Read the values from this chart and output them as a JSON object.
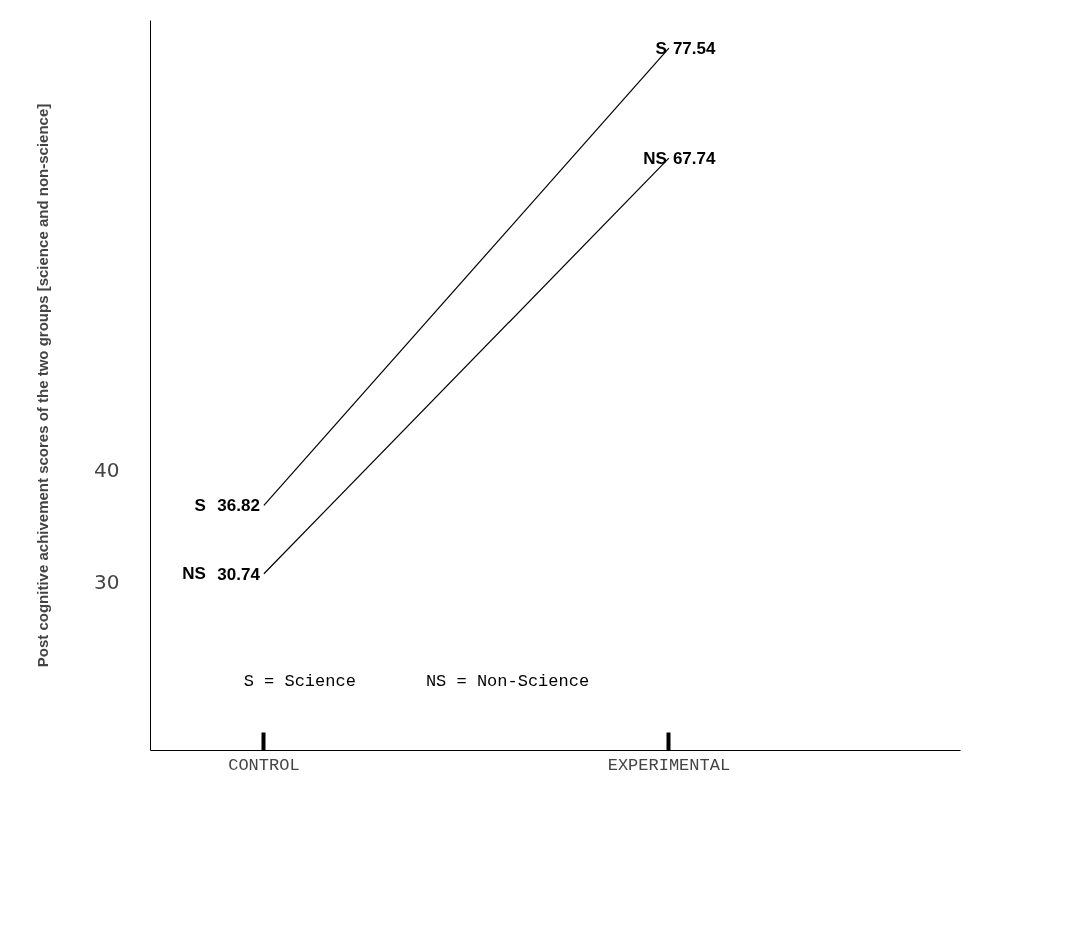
{
  "chart_data": {
    "type": "line",
    "ylabel": "Post cognitive achivement scores of the two groups [science and non-science]",
    "categories": [
      "CONTROL",
      "EXPERIMENTAL"
    ],
    "series": [
      {
        "name": "S",
        "color": "#000000",
        "values": [
          36.82,
          77.54
        ]
      },
      {
        "name": "NS",
        "color": "#000000",
        "values": [
          30.74,
          67.74
        ]
      }
    ],
    "ylim": [
      15,
      80
    ],
    "yticks": [
      30,
      40
    ],
    "data_labels": true,
    "legend": false,
    "grid": false,
    "marker": "none",
    "line_style": "solid",
    "annotations": [
      "S = Science",
      "NS = Non-Science"
    ]
  }
}
